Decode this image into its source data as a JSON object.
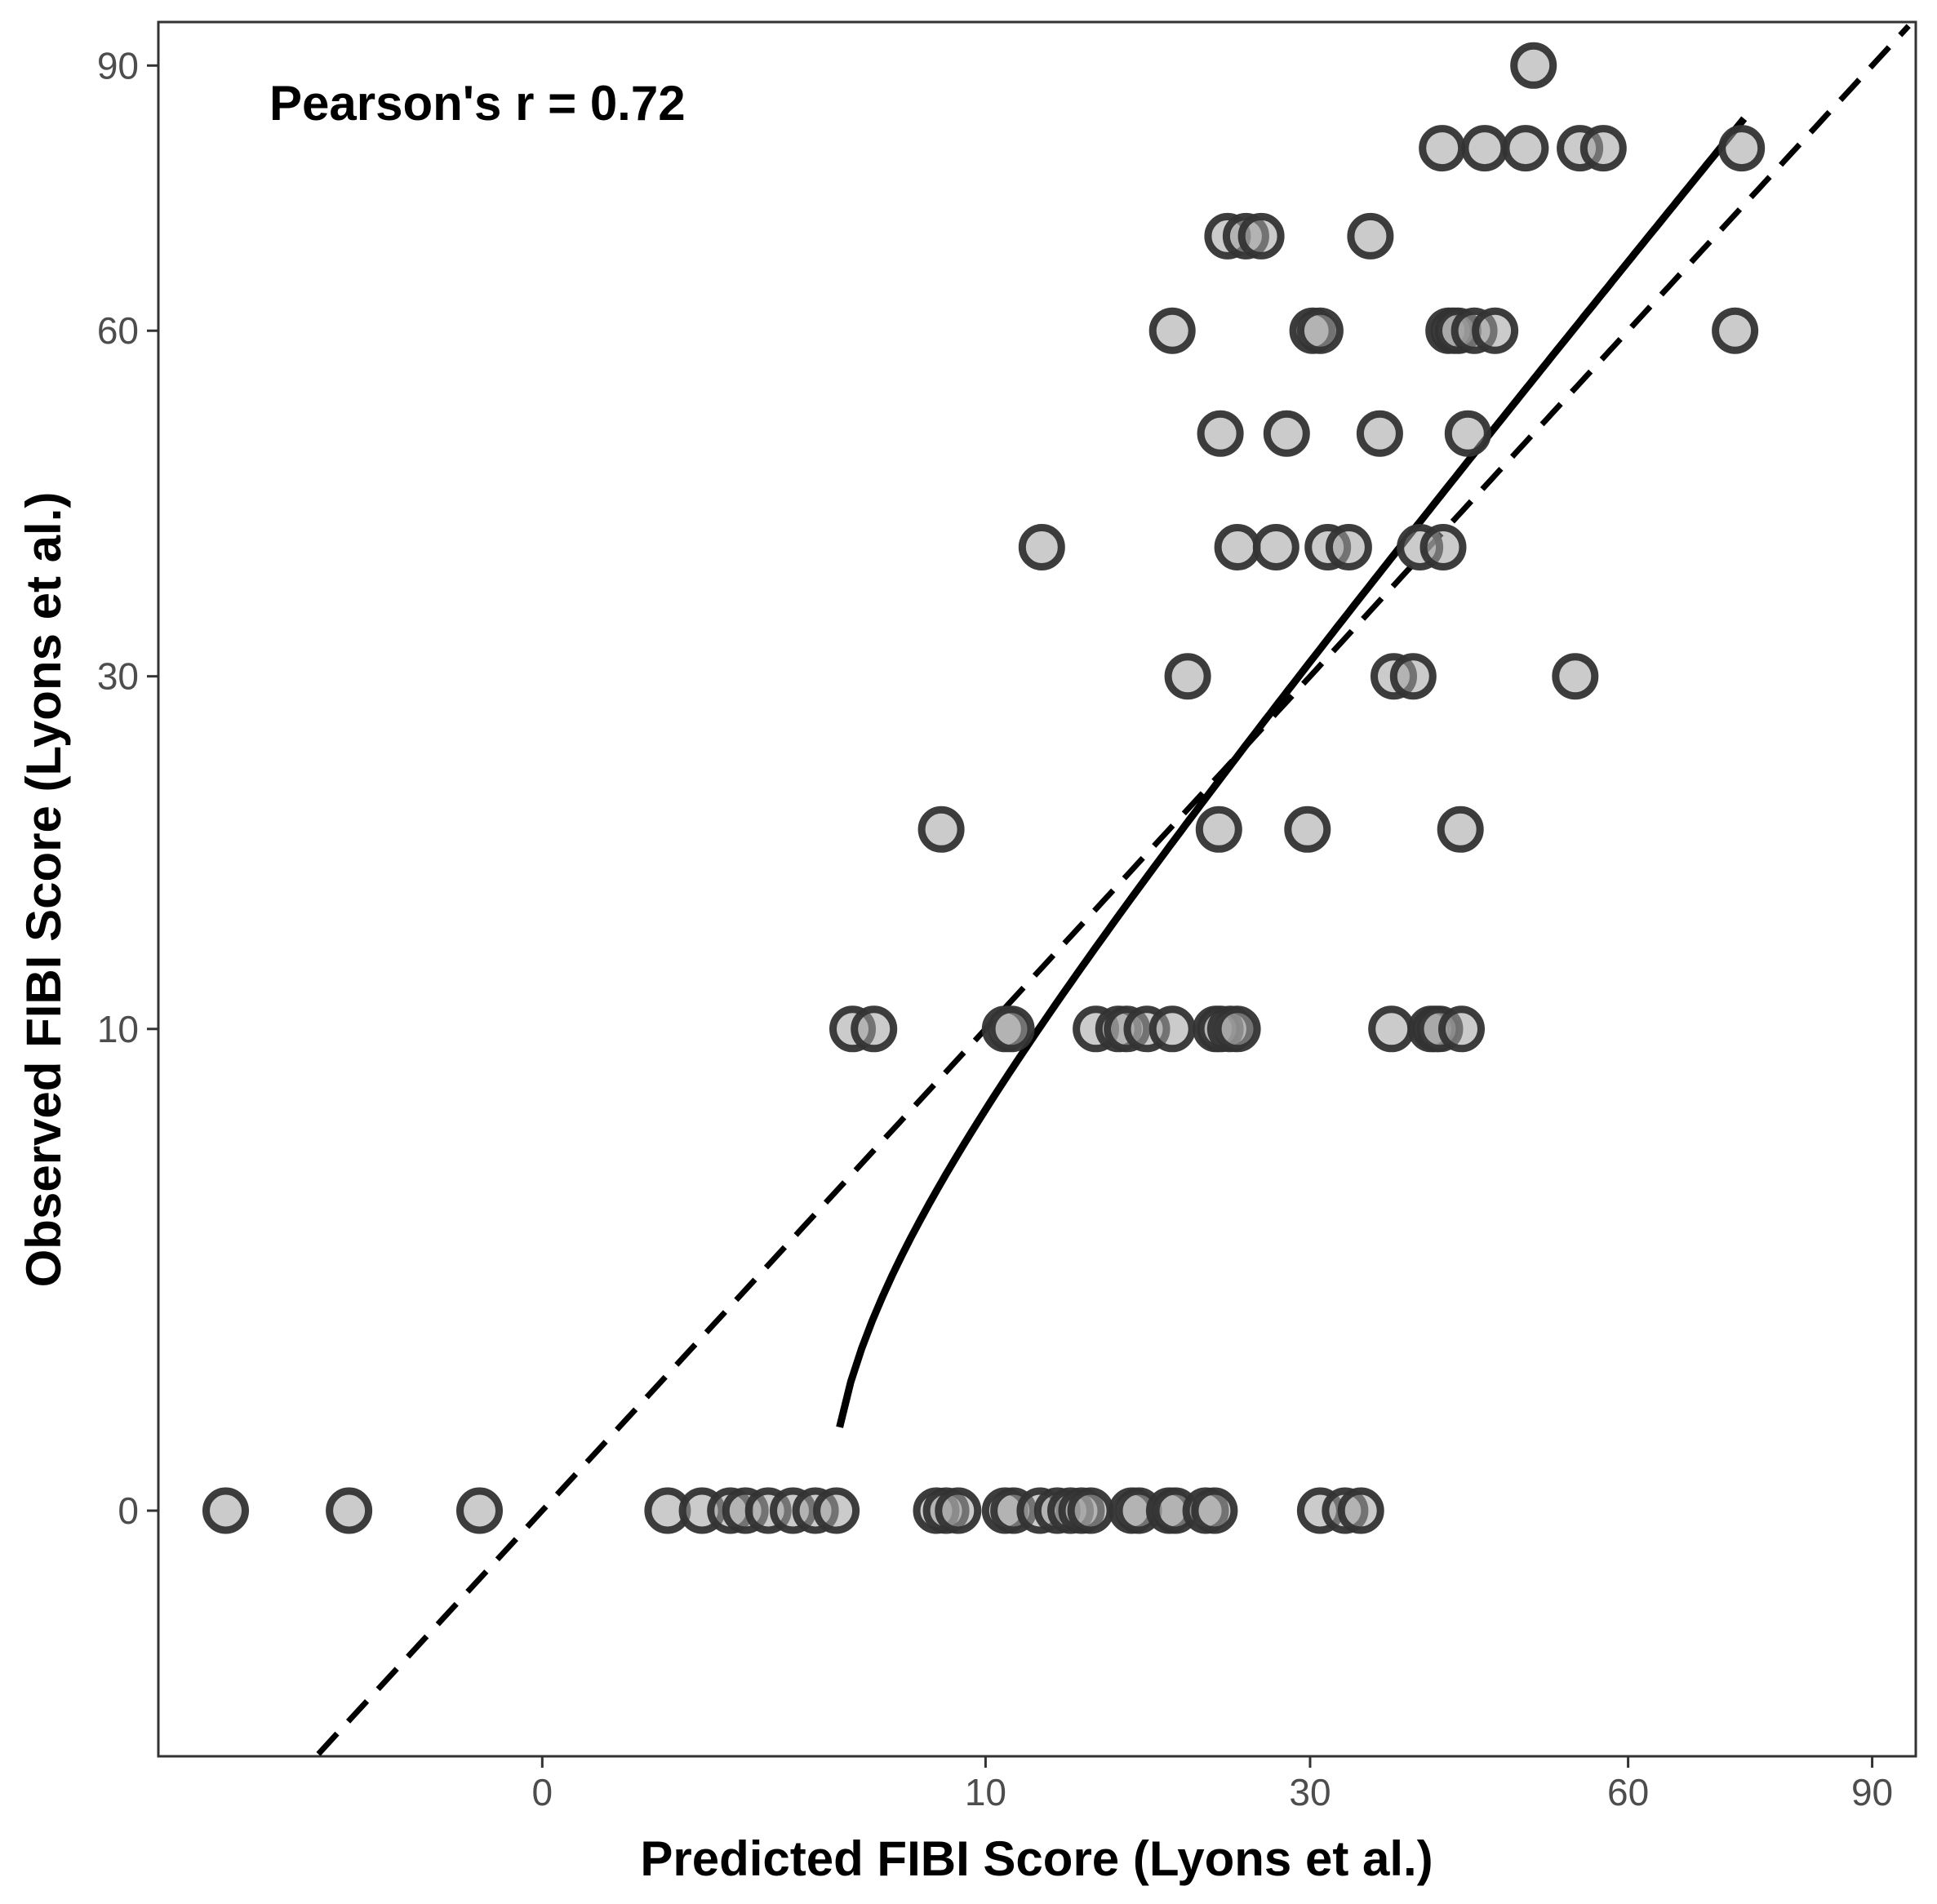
{
  "chart_data": {
    "type": "scatter",
    "xlabel": "Predicted FIBI Score (Lyons et al.)",
    "ylabel": "Observed FIBI Score (Lyons et al.)",
    "annotation": "Pearson's r = 0.72",
    "scale": "sqrt",
    "xlim": [
      -7.5,
      96
    ],
    "ylim": [
      -2.6,
      95.5
    ],
    "x_ticks": [
      0,
      10,
      30,
      60,
      90
    ],
    "y_ticks": [
      0,
      10,
      30,
      60,
      90
    ],
    "grid": false,
    "legend": "none",
    "colors": {
      "point_fill": "#a0a0a0",
      "point_stroke": "#333333",
      "line": "#000000"
    },
    "points": [
      {
        "x": -5.1,
        "y": 0
      },
      {
        "x": -1.9,
        "y": 0
      },
      {
        "x": -0.2,
        "y": 0
      },
      {
        "x": 0.8,
        "y": 0
      },
      {
        "x": 1.3,
        "y": 0
      },
      {
        "x": 1.8,
        "y": 0
      },
      {
        "x": 2.1,
        "y": 0
      },
      {
        "x": 2.6,
        "y": 0
      },
      {
        "x": 3.2,
        "y": 0
      },
      {
        "x": 3.8,
        "y": 0
      },
      {
        "x": 4.4,
        "y": 0
      },
      {
        "x": 7.9,
        "y": 0
      },
      {
        "x": 8.3,
        "y": 0
      },
      {
        "x": 8.8,
        "y": 0
      },
      {
        "x": 10.9,
        "y": 0
      },
      {
        "x": 11.3,
        "y": 0
      },
      {
        "x": 12.6,
        "y": 0
      },
      {
        "x": 13.5,
        "y": 0
      },
      {
        "x": 14.2,
        "y": 0
      },
      {
        "x": 14.8,
        "y": 0
      },
      {
        "x": 15.3,
        "y": 0
      },
      {
        "x": 17.7,
        "y": 0
      },
      {
        "x": 18.1,
        "y": 0
      },
      {
        "x": 20.0,
        "y": 0
      },
      {
        "x": 20.4,
        "y": 0
      },
      {
        "x": 22.4,
        "y": 0
      },
      {
        "x": 23.0,
        "y": 0
      },
      {
        "x": 30.8,
        "y": 0
      },
      {
        "x": 32.8,
        "y": 0
      },
      {
        "x": 34.1,
        "y": 0
      },
      {
        "x": 4.9,
        "y": 10
      },
      {
        "x": 5.6,
        "y": 10
      },
      {
        "x": 10.9,
        "y": 10
      },
      {
        "x": 11.2,
        "y": 10
      },
      {
        "x": 15.6,
        "y": 10
      },
      {
        "x": 16.9,
        "y": 10
      },
      {
        "x": 17.4,
        "y": 10
      },
      {
        "x": 18.6,
        "y": 10
      },
      {
        "x": 20.2,
        "y": 10
      },
      {
        "x": 23.1,
        "y": 10
      },
      {
        "x": 23.4,
        "y": 10
      },
      {
        "x": 24.1,
        "y": 10
      },
      {
        "x": 24.6,
        "y": 10
      },
      {
        "x": 36.7,
        "y": 10
      },
      {
        "x": 40.2,
        "y": 10
      },
      {
        "x": 40.6,
        "y": 10
      },
      {
        "x": 41.0,
        "y": 10
      },
      {
        "x": 43.0,
        "y": 10
      },
      {
        "x": 8.1,
        "y": 20
      },
      {
        "x": 23.3,
        "y": 20
      },
      {
        "x": 29.8,
        "y": 20
      },
      {
        "x": 42.9,
        "y": 20
      },
      {
        "x": 21.2,
        "y": 30
      },
      {
        "x": 36.9,
        "y": 30
      },
      {
        "x": 38.6,
        "y": 30
      },
      {
        "x": 54.3,
        "y": 30
      },
      {
        "x": 12.7,
        "y": 40
      },
      {
        "x": 24.6,
        "y": 40
      },
      {
        "x": 27.4,
        "y": 40
      },
      {
        "x": 31.4,
        "y": 40
      },
      {
        "x": 33.1,
        "y": 40
      },
      {
        "x": 39.2,
        "y": 40
      },
      {
        "x": 41.3,
        "y": 40
      },
      {
        "x": 23.4,
        "y": 50
      },
      {
        "x": 28.2,
        "y": 50
      },
      {
        "x": 35.7,
        "y": 50
      },
      {
        "x": 43.6,
        "y": 50
      },
      {
        "x": 20.2,
        "y": 60
      },
      {
        "x": 30.2,
        "y": 60
      },
      {
        "x": 30.8,
        "y": 60
      },
      {
        "x": 41.8,
        "y": 60
      },
      {
        "x": 42.3,
        "y": 60
      },
      {
        "x": 42.7,
        "y": 60
      },
      {
        "x": 44.2,
        "y": 60
      },
      {
        "x": 46.2,
        "y": 60
      },
      {
        "x": 72.4,
        "y": 60
      },
      {
        "x": 23.9,
        "y": 70
      },
      {
        "x": 25.2,
        "y": 70
      },
      {
        "x": 26.3,
        "y": 70
      },
      {
        "x": 34.9,
        "y": 70
      },
      {
        "x": 41.2,
        "y": 80
      },
      {
        "x": 45.2,
        "y": 80
      },
      {
        "x": 49.2,
        "y": 80
      },
      {
        "x": 54.8,
        "y": 80
      },
      {
        "x": 57.3,
        "y": 80
      },
      {
        "x": 73.2,
        "y": 80
      },
      {
        "x": 50.0,
        "y": 90
      }
    ],
    "fit_line": {
      "x": [
        4.5,
        73.5
      ],
      "y": [
        0.3,
        83.5
      ],
      "style": "solid"
    },
    "identity_line": {
      "x": [
        -5,
        95
      ],
      "y": [
        -5,
        95
      ],
      "style": "dashed"
    }
  }
}
